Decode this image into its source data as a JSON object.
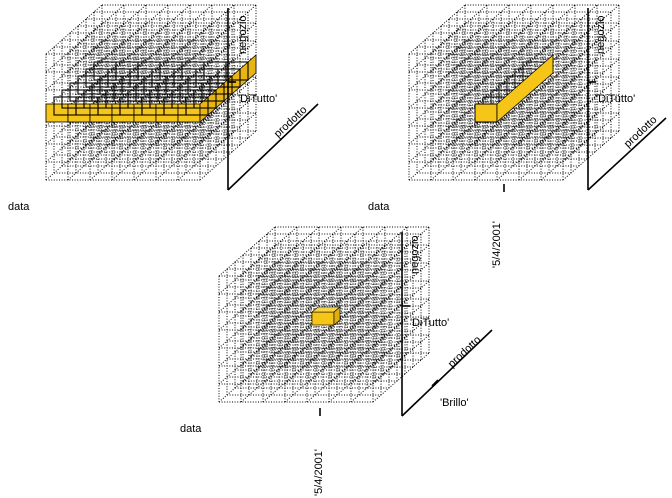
{
  "diagrams": [
    {
      "id": "slice-negozio",
      "axis_labels": {
        "x": "data",
        "y": "negozio",
        "z": "prodotto"
      },
      "value_labels": {
        "negozio": "'DiTutto'"
      }
    },
    {
      "id": "dice-negozio-data",
      "axis_labels": {
        "x": "data",
        "y": "negozio",
        "z": "prodotto"
      },
      "value_labels": {
        "negozio": "'DiTutto'",
        "data": "'5/4/2001'"
      }
    },
    {
      "id": "point-negozio-data-prodotto",
      "axis_labels": {
        "x": "data",
        "y": "negozio",
        "z": "prodotto"
      },
      "value_labels": {
        "negozio": "'DiTutto'",
        "data": "'5/4/2001'",
        "prodotto": "'Brillo'"
      }
    }
  ],
  "colors": {
    "highlight_fill": "#F5C518",
    "highlight_stroke": "#000000",
    "grid_dots": "#000000"
  }
}
